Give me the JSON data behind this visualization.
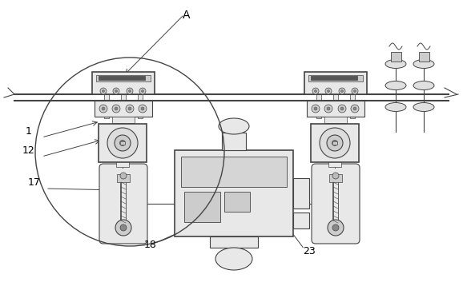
{
  "bg_color": "#ffffff",
  "lc": "#444444",
  "fill_light": "#e8e8e8",
  "fill_mid": "#cccccc",
  "fill_dark": "#999999",
  "figsize": [
    5.78,
    3.63
  ],
  "dpi": 100,
  "label_fs": 9
}
